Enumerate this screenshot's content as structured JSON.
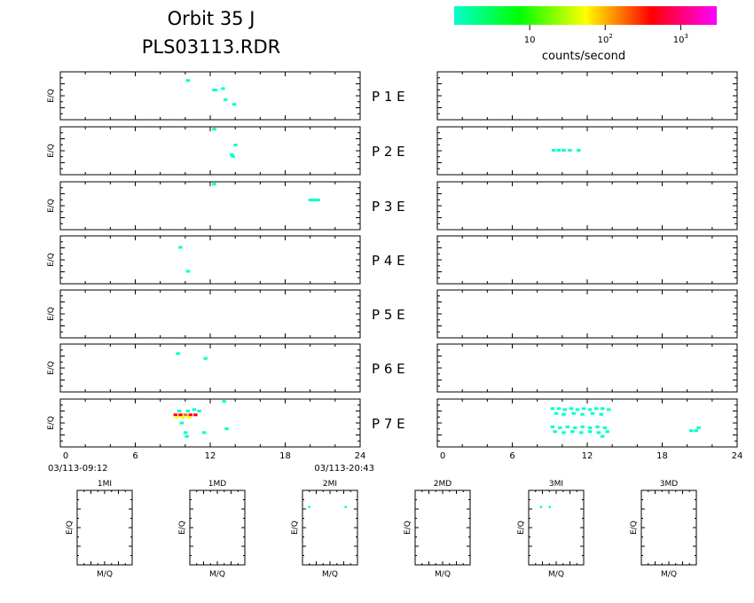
{
  "header": {
    "title": "Orbit 35 J",
    "subtitle": "PLS03113.RDR"
  },
  "colorbar": {
    "label": "counts/second",
    "ticks": [
      {
        "value": 10,
        "base": "10",
        "exp": ""
      },
      {
        "value": 100,
        "base": "10",
        "exp": "2"
      },
      {
        "value": 1000,
        "base": "10",
        "exp": "3"
      }
    ],
    "min": 1,
    "max": 3000,
    "stops": [
      "#00ffcc",
      "#00ff00",
      "#ffff00",
      "#ff0000",
      "#ff00ff"
    ]
  },
  "chart_data": {
    "type": "heatmap",
    "y_label": "E/Q",
    "x_ticks": [
      "0",
      "6",
      "12",
      "18",
      "24"
    ],
    "xlim": [
      0,
      24
    ],
    "ylim": [
      0,
      1
    ],
    "time_start": "03/113-09:12",
    "time_end": "03/113-20:43",
    "panels": [
      {
        "label": "P  1  E",
        "left_points": [
          [
            10.2,
            0.18,
            "#00ffcc"
          ],
          [
            12.3,
            0.38,
            "#00ffcc"
          ],
          [
            12.4,
            0.38,
            "#00ffcc"
          ],
          [
            13.0,
            0.35,
            "#00ffcc"
          ],
          [
            13.2,
            0.58,
            "#00ffcc"
          ],
          [
            13.9,
            0.68,
            "#00ffcc"
          ]
        ],
        "right_points": []
      },
      {
        "label": "P  2  E",
        "left_points": [
          [
            12.3,
            0.05,
            "#00ffcc"
          ],
          [
            14.0,
            0.38,
            "#00ffcc"
          ],
          [
            13.7,
            0.58,
            "#00ffcc"
          ],
          [
            13.8,
            0.62,
            "#00ffcc"
          ]
        ],
        "right_points": [
          [
            9.3,
            0.49,
            "#00ffcc"
          ],
          [
            9.7,
            0.49,
            "#00ffcc"
          ],
          [
            10.1,
            0.49,
            "#00ffcc"
          ],
          [
            10.6,
            0.49,
            "#00ffcc"
          ],
          [
            11.3,
            0.49,
            "#00ffcc"
          ]
        ]
      },
      {
        "label": "P  3  E",
        "left_points": [
          [
            12.3,
            0.05,
            "#00ffcc"
          ],
          [
            20.0,
            0.38,
            "#00ffcc"
          ],
          [
            20.3,
            0.38,
            "#00ffcc"
          ],
          [
            20.6,
            0.38,
            "#00ffcc"
          ]
        ],
        "right_points": []
      },
      {
        "label": "P  4  E",
        "left_points": [
          [
            9.6,
            0.24,
            "#00ffcc"
          ],
          [
            10.2,
            0.74,
            "#00ffcc"
          ]
        ],
        "right_points": []
      },
      {
        "label": "P  5  E",
        "left_points": [],
        "right_points": []
      },
      {
        "label": "P  6  E",
        "left_points": [
          [
            9.4,
            0.2,
            "#00ffcc"
          ],
          [
            11.6,
            0.3,
            "#00ffcc"
          ]
        ],
        "right_points": []
      },
      {
        "label": "P  7  E",
        "left_points": [
          [
            13.1,
            0.05,
            "#00ffcc"
          ],
          [
            9.5,
            0.25,
            "#00ffcc"
          ],
          [
            10.2,
            0.25,
            "#00ffcc"
          ],
          [
            10.7,
            0.22,
            "#00ffcc"
          ],
          [
            11.1,
            0.25,
            "#00ffcc"
          ],
          [
            9.2,
            0.33,
            "#ff0000"
          ],
          [
            9.6,
            0.33,
            "#ff0000"
          ],
          [
            10.0,
            0.33,
            "#ff6600"
          ],
          [
            10.4,
            0.33,
            "#ff0000"
          ],
          [
            10.8,
            0.33,
            "#ff0000"
          ],
          [
            9.3,
            0.38,
            "#ffff00"
          ],
          [
            9.8,
            0.38,
            "#ffff00"
          ],
          [
            10.3,
            0.38,
            "#ffff00"
          ],
          [
            9.7,
            0.5,
            "#00ffcc"
          ],
          [
            10.0,
            0.7,
            "#00ffcc"
          ],
          [
            10.1,
            0.78,
            "#00ffcc"
          ],
          [
            11.5,
            0.7,
            "#00ffcc"
          ],
          [
            13.3,
            0.62,
            "#00ffcc"
          ]
        ],
        "right_points": [
          [
            9.2,
            0.2,
            "#00ffcc"
          ],
          [
            9.7,
            0.2,
            "#00ffcc"
          ],
          [
            10.2,
            0.22,
            "#00ffcc"
          ],
          [
            10.7,
            0.2,
            "#00ffcc"
          ],
          [
            11.2,
            0.22,
            "#00ffcc"
          ],
          [
            11.7,
            0.2,
            "#00ffcc"
          ],
          [
            12.2,
            0.22,
            "#00ffcc"
          ],
          [
            12.7,
            0.2,
            "#00ffcc"
          ],
          [
            13.2,
            0.2,
            "#00ffcc"
          ],
          [
            13.7,
            0.22,
            "#00ffcc"
          ],
          [
            9.5,
            0.3,
            "#00ffcc"
          ],
          [
            10.1,
            0.32,
            "#00ffcc"
          ],
          [
            10.9,
            0.3,
            "#00ffcc"
          ],
          [
            11.6,
            0.32,
            "#00ffcc"
          ],
          [
            12.4,
            0.3,
            "#00ffcc"
          ],
          [
            13.1,
            0.32,
            "#00ffcc"
          ],
          [
            9.2,
            0.58,
            "#00ffcc"
          ],
          [
            9.8,
            0.6,
            "#00ffcc"
          ],
          [
            10.4,
            0.58,
            "#00ffcc"
          ],
          [
            11.0,
            0.6,
            "#00ffcc"
          ],
          [
            11.6,
            0.58,
            "#00ffcc"
          ],
          [
            12.2,
            0.6,
            "#00ffcc"
          ],
          [
            12.8,
            0.58,
            "#00ffcc"
          ],
          [
            13.4,
            0.6,
            "#00ffcc"
          ],
          [
            9.4,
            0.68,
            "#00ffcc"
          ],
          [
            10.1,
            0.7,
            "#00ffcc"
          ],
          [
            10.8,
            0.68,
            "#00ffcc"
          ],
          [
            11.5,
            0.7,
            "#00ffcc"
          ],
          [
            12.2,
            0.68,
            "#00ffcc"
          ],
          [
            12.9,
            0.7,
            "#00ffcc"
          ],
          [
            13.6,
            0.68,
            "#00ffcc"
          ],
          [
            13.2,
            0.78,
            "#00ffcc"
          ],
          [
            20.3,
            0.66,
            "#00ffcc"
          ],
          [
            20.7,
            0.66,
            "#00ffcc"
          ],
          [
            20.9,
            0.6,
            "#00ffcc"
          ]
        ]
      }
    ],
    "small_panels": [
      {
        "label": "1MI",
        "x_label": "M/Q",
        "y_label": "E/Q",
        "points": []
      },
      {
        "label": "1MD",
        "x_label": "M/Q",
        "y_label": "E/Q",
        "points": []
      },
      {
        "label": "2MI",
        "x_label": "M/Q",
        "y_label": "E/Q",
        "points": [
          [
            0.12,
            0.22,
            "#00ffcc"
          ],
          [
            0.78,
            0.22,
            "#00ffcc"
          ]
        ]
      },
      {
        "label": "2MD",
        "x_label": "M/Q",
        "y_label": "E/Q",
        "points": []
      },
      {
        "label": "3MI",
        "x_label": "M/Q",
        "y_label": "E/Q",
        "points": [
          [
            0.22,
            0.22,
            "#00ffcc"
          ],
          [
            0.38,
            0.22,
            "#00ffcc"
          ]
        ]
      },
      {
        "label": "3MD",
        "x_label": "M/Q",
        "y_label": "E/Q",
        "points": []
      }
    ]
  }
}
